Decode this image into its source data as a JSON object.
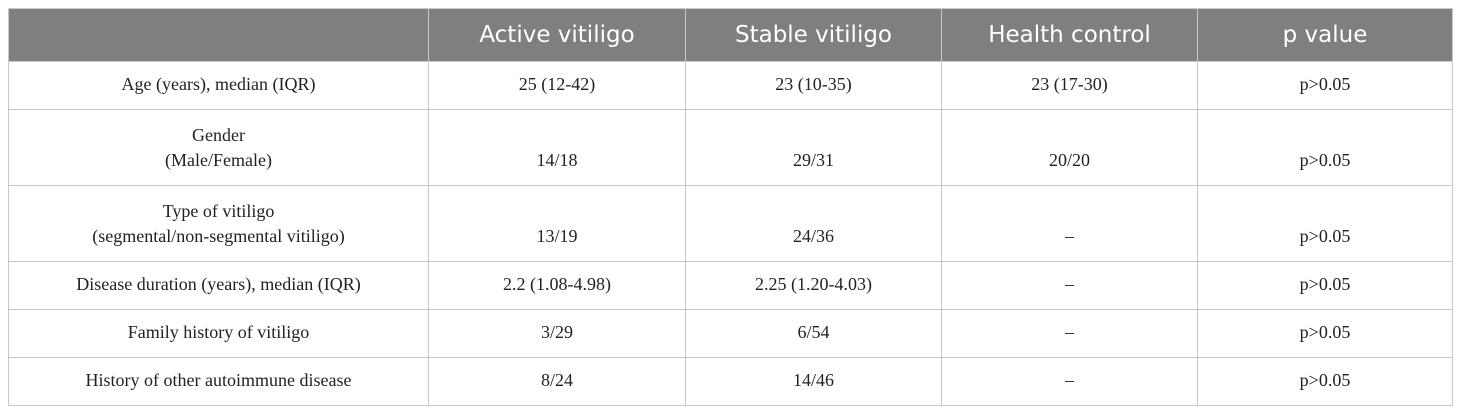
{
  "table": {
    "header": [
      "",
      "Active vitiligo",
      "Stable vitiligo",
      "Health control",
      "p value"
    ],
    "rows": [
      {
        "label": [
          "Age (years), median (IQR)"
        ],
        "values": [
          "25 (12-42)",
          "23 (10-35)",
          "23 (17-30)",
          "p>0.05"
        ]
      },
      {
        "label": [
          "Gender",
          "(Male/Female)"
        ],
        "values": [
          "14/18",
          "29/31",
          "20/20",
          "p>0.05"
        ]
      },
      {
        "label": [
          "Type of vitiligo",
          "(segmental/non-segmental vitiligo)"
        ],
        "values": [
          "13/19",
          "24/36",
          "–",
          "p>0.05"
        ]
      },
      {
        "label": [
          "Disease duration (years), median (IQR)"
        ],
        "values": [
          "2.2 (1.08-4.98)",
          "2.25 (1.20-4.03)",
          "–",
          "p>0.05"
        ]
      },
      {
        "label": [
          "Family history of vitiligo"
        ],
        "values": [
          "3/29",
          "6/54",
          "–",
          "p>0.05"
        ]
      },
      {
        "label": [
          "History of other autoimmune disease"
        ],
        "values": [
          "8/24",
          "14/46",
          "–",
          "p>0.05"
        ]
      }
    ]
  }
}
